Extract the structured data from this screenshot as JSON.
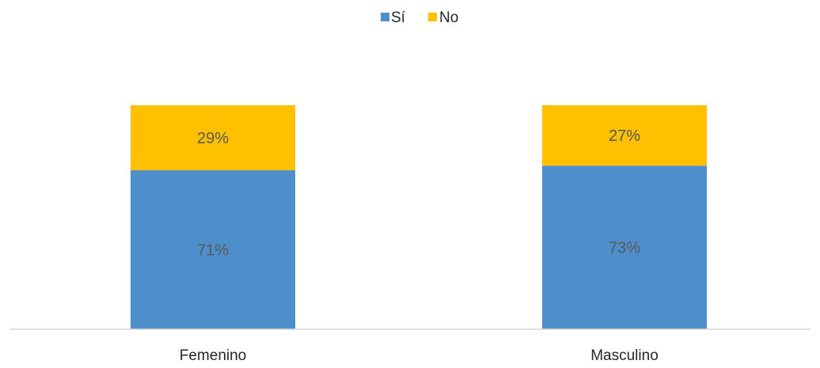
{
  "chart_data": {
    "type": "bar",
    "stacked": true,
    "categories": [
      "Femenino",
      "Masculino"
    ],
    "series": [
      {
        "name": "Sí",
        "values": [
          71,
          73
        ],
        "labels": [
          "71%",
          "73%"
        ],
        "color": "#4E8FCB"
      },
      {
        "name": "No",
        "values": [
          29,
          27
        ],
        "labels": [
          "29%",
          "27%"
        ],
        "color": "#FFC000"
      }
    ],
    "ylim": [
      0,
      100
    ],
    "grid": false,
    "legend_position": "top-center"
  }
}
